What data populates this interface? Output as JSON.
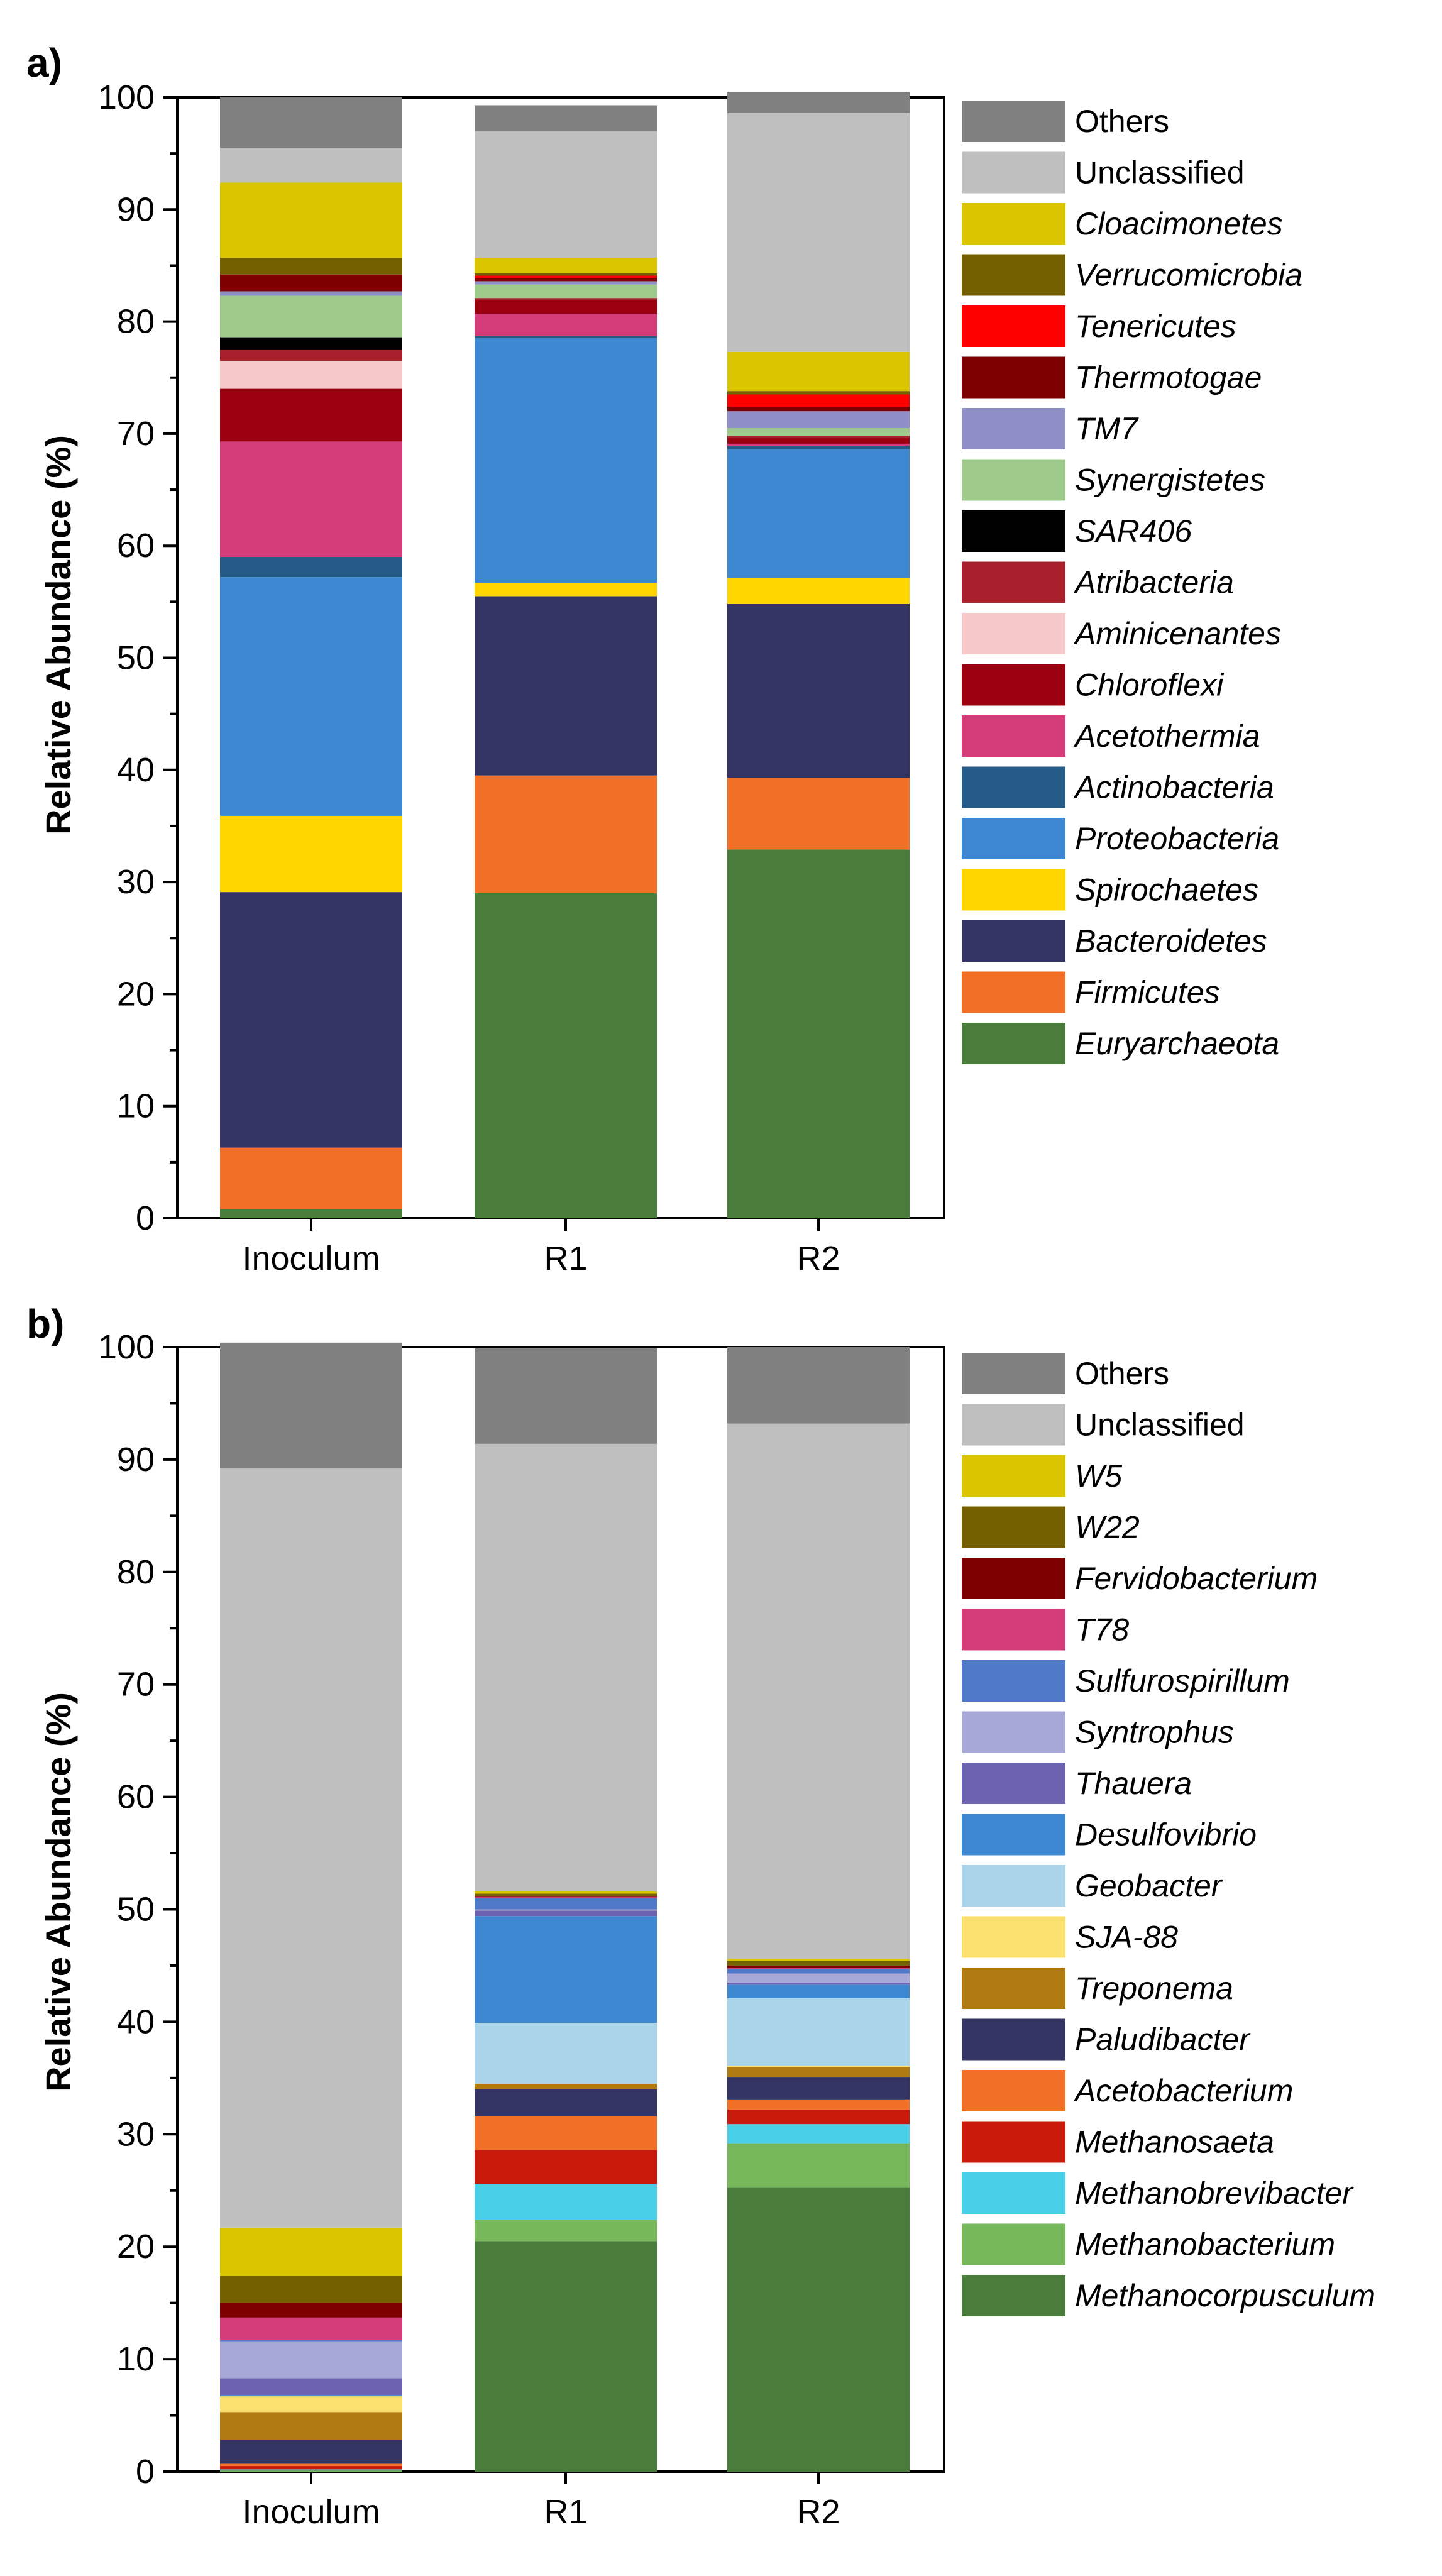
{
  "chart_data": [
    {
      "panel": "a)",
      "type": "bar",
      "stacked": true,
      "ylabel": "Relative Abundance (%)",
      "xlabel": "",
      "ylim": [
        0,
        100
      ],
      "yticks": [
        0,
        10,
        20,
        30,
        40,
        50,
        60,
        70,
        80,
        90,
        100
      ],
      "categories": [
        "Inoculum",
        "R1",
        "R2"
      ],
      "series": [
        {
          "name": "Euryarchaeota",
          "color": "#4a7d3b",
          "italic": true,
          "values": [
            0.8,
            29.0,
            32.9
          ]
        },
        {
          "name": "Firmicutes",
          "color": "#f07027",
          "italic": true,
          "values": [
            5.5,
            10.5,
            6.4
          ]
        },
        {
          "name": "Bacteroidetes",
          "color": "#333364",
          "italic": true,
          "values": [
            22.8,
            16.0,
            15.5
          ]
        },
        {
          "name": "Spirochaetes",
          "color": "#ffd500",
          "italic": true,
          "values": [
            6.8,
            1.2,
            2.3
          ]
        },
        {
          "name": "Proteobacteria",
          "color": "#3e88d2",
          "italic": true,
          "values": [
            21.3,
            21.8,
            11.5
          ]
        },
        {
          "name": "Actinobacteria",
          "color": "#265b87",
          "italic": true,
          "values": [
            1.8,
            0.2,
            0.3
          ]
        },
        {
          "name": "Acetothermia",
          "color": "#d43c7a",
          "italic": true,
          "values": [
            10.3,
            2.0,
            0.2
          ]
        },
        {
          "name": "Chloroflexi",
          "color": "#9a0010",
          "italic": true,
          "values": [
            4.7,
            1.2,
            0.5
          ]
        },
        {
          "name": "Aminicenantes",
          "color": "#f5c9c9",
          "italic": true,
          "values": [
            2.5,
            0.0,
            0.0
          ]
        },
        {
          "name": "Atribacteria",
          "color": "#a8202c",
          "italic": true,
          "values": [
            1.0,
            0.2,
            0.2
          ]
        },
        {
          "name": "SAR406",
          "color": "#000000",
          "italic": true,
          "values": [
            1.1,
            0.0,
            0.0
          ]
        },
        {
          "name": "Synergistetes",
          "color": "#9ecb8c",
          "italic": true,
          "values": [
            3.7,
            1.2,
            0.7
          ]
        },
        {
          "name": "TM7",
          "color": "#8f8fc8",
          "italic": true,
          "values": [
            0.4,
            0.3,
            1.5
          ]
        },
        {
          "name": "Thermotogae",
          "color": "#7f0000",
          "italic": true,
          "values": [
            1.5,
            0.3,
            0.4
          ]
        },
        {
          "name": "Tenericutes",
          "color": "#ff0000",
          "italic": true,
          "values": [
            0.0,
            0.2,
            1.1
          ]
        },
        {
          "name": "Verrucomicrobia",
          "color": "#756000",
          "italic": true,
          "values": [
            1.5,
            0.2,
            0.3
          ]
        },
        {
          "name": "Cloacimonetes",
          "color": "#dbc400",
          "italic": true,
          "values": [
            6.7,
            1.4,
            3.5
          ]
        },
        {
          "name": "Unclassified",
          "color": "#bfbfbf",
          "italic": false,
          "values": [
            3.1,
            11.3,
            21.3
          ]
        },
        {
          "name": "Others",
          "color": "#808080",
          "italic": false,
          "values": [
            4.5,
            2.3,
            1.9
          ]
        }
      ]
    },
    {
      "panel": "b)",
      "type": "bar",
      "stacked": true,
      "ylabel": "Relative Abundance (%)",
      "xlabel": "",
      "ylim": [
        0,
        100
      ],
      "yticks": [
        0,
        10,
        20,
        30,
        40,
        50,
        60,
        70,
        80,
        90,
        100
      ],
      "categories": [
        "Inoculum",
        "R1",
        "R2"
      ],
      "series": [
        {
          "name": "Methanocorpusculum",
          "color": "#4a7d3b",
          "italic": true,
          "values": [
            0.0,
            20.5,
            25.3
          ]
        },
        {
          "name": "Methanobacterium",
          "color": "#76b85a",
          "italic": true,
          "values": [
            0.1,
            1.9,
            3.9
          ]
        },
        {
          "name": "Methanobrevibacter",
          "color": "#49cfe8",
          "italic": true,
          "values": [
            0.1,
            3.2,
            1.7
          ]
        },
        {
          "name": "Methanosaeta",
          "color": "#c81b0b",
          "italic": true,
          "values": [
            0.3,
            3.0,
            1.3
          ]
        },
        {
          "name": "Acetobacterium",
          "color": "#f07027",
          "italic": true,
          "values": [
            0.2,
            3.0,
            0.9
          ]
        },
        {
          "name": "Paludibacter",
          "color": "#333364",
          "italic": true,
          "values": [
            2.1,
            2.4,
            2.0
          ]
        },
        {
          "name": "Treponema",
          "color": "#b07a10",
          "italic": true,
          "values": [
            2.5,
            0.5,
            0.9
          ]
        },
        {
          "name": "SJA-88",
          "color": "#fbe070",
          "italic": true,
          "values": [
            1.4,
            0.0,
            0.1
          ]
        },
        {
          "name": "Geobacter",
          "color": "#a9d4ea",
          "italic": true,
          "values": [
            0.0,
            5.4,
            6.0
          ]
        },
        {
          "name": "Desulfovibrio",
          "color": "#3e88d2",
          "italic": true,
          "values": [
            0.1,
            9.5,
            1.2
          ]
        },
        {
          "name": "Thauera",
          "color": "#6b63b0",
          "italic": true,
          "values": [
            1.5,
            0.5,
            0.2
          ]
        },
        {
          "name": "Syntrophus",
          "color": "#a7a7d8",
          "italic": true,
          "values": [
            3.3,
            0.1,
            0.8
          ]
        },
        {
          "name": "Sulfurospirillum",
          "color": "#5079c9",
          "italic": true,
          "values": [
            0.1,
            1.0,
            0.4
          ]
        },
        {
          "name": "T78",
          "color": "#d43c7a",
          "italic": true,
          "values": [
            2.0,
            0.1,
            0.1
          ]
        },
        {
          "name": "Fervidobacterium",
          "color": "#7f0000",
          "italic": true,
          "values": [
            1.3,
            0.1,
            0.2
          ]
        },
        {
          "name": "W22",
          "color": "#756000",
          "italic": true,
          "values": [
            2.4,
            0.2,
            0.4
          ]
        },
        {
          "name": "W5",
          "color": "#dbc400",
          "italic": true,
          "values": [
            4.3,
            0.2,
            0.2
          ]
        },
        {
          "name": "Unclassified",
          "color": "#bfbfbf",
          "italic": false,
          "values": [
            67.5,
            39.8,
            47.6
          ]
        },
        {
          "name": "Others",
          "color": "#808080",
          "italic": false,
          "values": [
            11.2,
            8.5,
            6.8
          ]
        }
      ]
    }
  ]
}
